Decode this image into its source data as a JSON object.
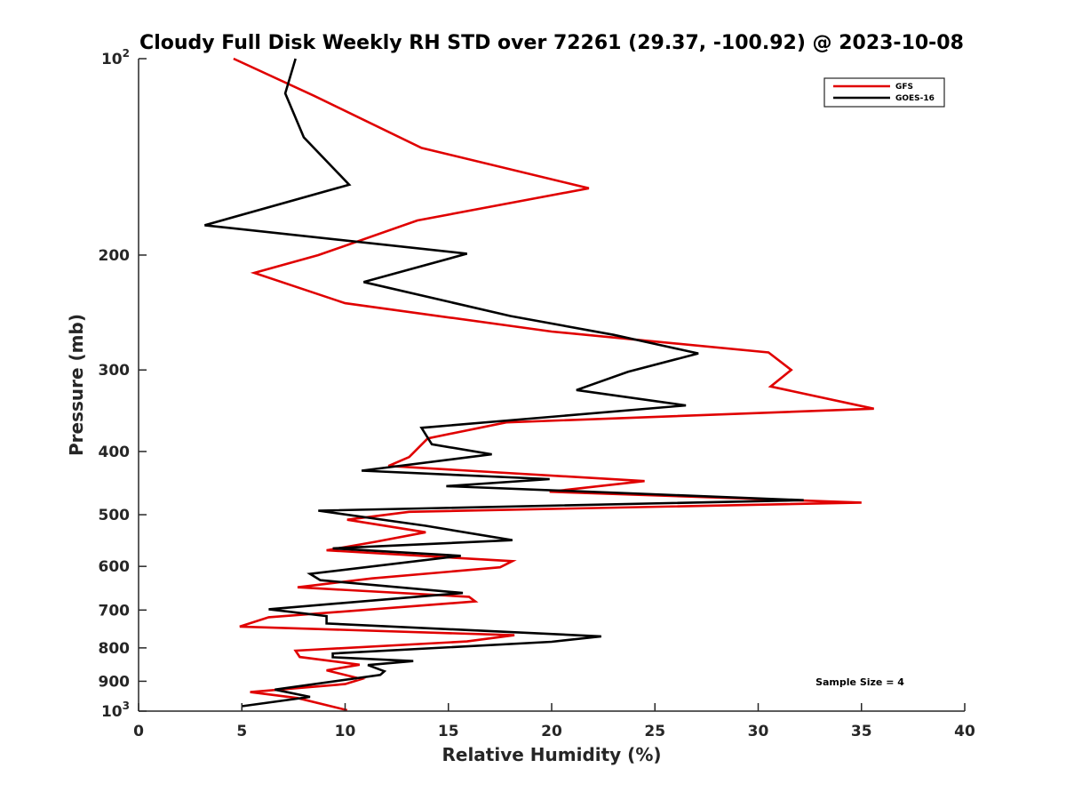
{
  "chart_data": {
    "type": "line",
    "title": "Cloudy Full Disk Weekly RH STD over 72261 (29.37, -100.92) @ 2023-10-08",
    "xlabel": "Relative Humidity (%)",
    "ylabel": "Pressure (mb)",
    "xlim": [
      0,
      40
    ],
    "ylim": [
      100,
      1000
    ],
    "y_scale": "log",
    "y_reversed": true,
    "grid": false,
    "x_ticks": [
      "0",
      "5",
      "10",
      "15",
      "20",
      "25",
      "30",
      "35",
      "40"
    ],
    "y_ticks": [
      {
        "value": 100,
        "base": "10",
        "exp": "2"
      },
      {
        "value": 200,
        "label": "200"
      },
      {
        "value": 300,
        "label": "300"
      },
      {
        "value": 400,
        "label": "400"
      },
      {
        "value": 500,
        "label": "500"
      },
      {
        "value": 600,
        "label": "600"
      },
      {
        "value": 700,
        "label": "700"
      },
      {
        "value": 800,
        "label": "800"
      },
      {
        "value": 900,
        "label": "900"
      },
      {
        "value": 1000,
        "base": "10",
        "exp": "3"
      }
    ],
    "legend_position": "top-right",
    "annotation": "Sample Size = 4",
    "series": [
      {
        "name": "GFS",
        "color": "#e00000",
        "points": [
          [
            4.6,
            100
          ],
          [
            8.5,
            114
          ],
          [
            13.7,
            137
          ],
          [
            21.8,
            158
          ],
          [
            13.5,
            177
          ],
          [
            8.7,
            200
          ],
          [
            5.6,
            213
          ],
          [
            10,
            237
          ],
          [
            20,
            262
          ],
          [
            30.5,
            282
          ],
          [
            31.6,
            300
          ],
          [
            30.6,
            318
          ],
          [
            35.6,
            344
          ],
          [
            17.8,
            361
          ],
          [
            14,
            382
          ],
          [
            13.1,
            408
          ],
          [
            12.1,
            421
          ],
          [
            24.5,
            444
          ],
          [
            19.9,
            461
          ],
          [
            35,
            479
          ],
          [
            13.1,
            495
          ],
          [
            10.1,
            509
          ],
          [
            13.9,
            532
          ],
          [
            11.5,
            550
          ],
          [
            9.1,
            567
          ],
          [
            18.1,
            589
          ],
          [
            17.5,
            602
          ],
          [
            11.3,
            626
          ],
          [
            7.7,
            646
          ],
          [
            16,
            668
          ],
          [
            16.3,
            679
          ],
          [
            6.3,
            718
          ],
          [
            4.9,
            742
          ],
          [
            18.2,
            765
          ],
          [
            15.9,
            782
          ],
          [
            7.6,
            808
          ],
          [
            7.8,
            826
          ],
          [
            10.7,
            849
          ],
          [
            9.1,
            866
          ],
          [
            10.8,
            893
          ],
          [
            10,
            909
          ],
          [
            5.4,
            935
          ],
          [
            7.7,
            955
          ],
          [
            10.1,
            997
          ]
        ]
      },
      {
        "name": "GOES-16",
        "color": "#000000",
        "points": [
          [
            7.6,
            100
          ],
          [
            7.1,
            113
          ],
          [
            8,
            132
          ],
          [
            10.2,
            156
          ],
          [
            3.2,
            180
          ],
          [
            15.9,
            199
          ],
          [
            10.9,
            220
          ],
          [
            18,
            248
          ],
          [
            23,
            265
          ],
          [
            27.1,
            283
          ],
          [
            23.7,
            302
          ],
          [
            21.2,
            322
          ],
          [
            26.5,
            340
          ],
          [
            13.7,
            368
          ],
          [
            14.2,
            390
          ],
          [
            17.1,
            404
          ],
          [
            10.8,
            428
          ],
          [
            19.9,
            441
          ],
          [
            14.9,
            452
          ],
          [
            32.2,
            475
          ],
          [
            8.7,
            493
          ],
          [
            13.9,
            520
          ],
          [
            18.1,
            547
          ],
          [
            9.4,
            563
          ],
          [
            15.6,
            578
          ],
          [
            8.3,
            616
          ],
          [
            8.8,
            630
          ],
          [
            15.7,
            659
          ],
          [
            6.3,
            698
          ],
          [
            9.1,
            715
          ],
          [
            9.1,
            734
          ],
          [
            22.4,
            768
          ],
          [
            20,
            783
          ],
          [
            9.4,
            816
          ],
          [
            9.4,
            827
          ],
          [
            13.3,
            838
          ],
          [
            11.1,
            850
          ],
          [
            11.9,
            869
          ],
          [
            11.7,
            880
          ],
          [
            6.6,
            927
          ],
          [
            8.3,
            951
          ],
          [
            5,
            983
          ]
        ]
      }
    ]
  }
}
